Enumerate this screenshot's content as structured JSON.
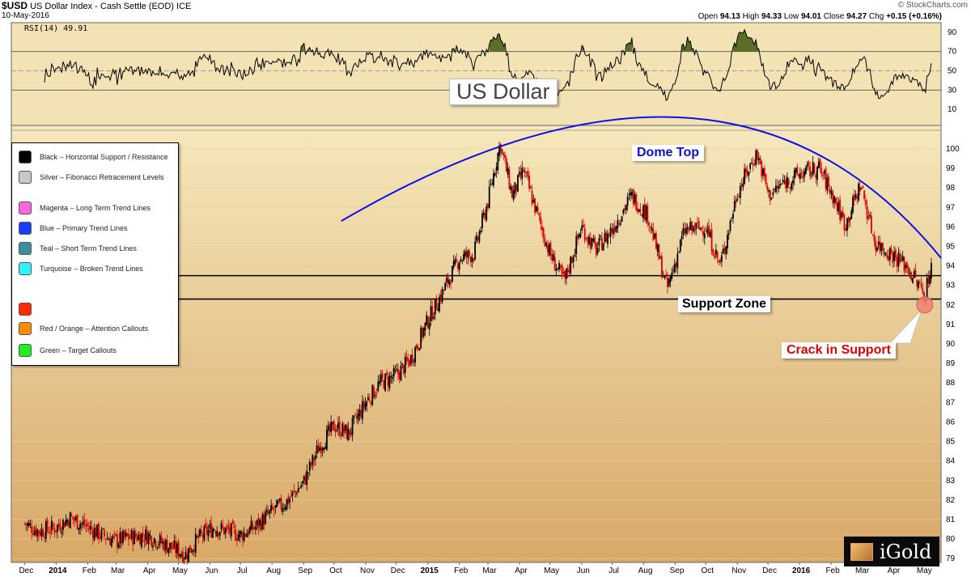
{
  "header": {
    "symbol": "$USD",
    "name": "US Dollar Index - Cash Settle (EOD)",
    "exchange": "ICE",
    "date": "10-May-2016",
    "source": "© StockCharts.com",
    "open_label": "Open",
    "open": "94.13",
    "high_label": "High",
    "high": "94.33",
    "low_label": "Low",
    "low": "94.01",
    "close_label": "Close",
    "close": "94.27",
    "chg_label": "Chg",
    "chg": "+0.15 (+0.16%)"
  },
  "rsi_panel": {
    "label": "RSI(14) 49.91",
    "ticks": [
      "90",
      "70",
      "50",
      "30",
      "10"
    ]
  },
  "legend": {
    "items": [
      {
        "label": "Black – Horizontal Support / Resistance",
        "color": "#000000"
      },
      {
        "label": "Silver – Fibonacci Retracement Levels",
        "color": "#c8c8c8"
      },
      {
        "label": "Magenta – Long Term Trend Lines",
        "color": "#ff66dd"
      },
      {
        "label": "Blue – Primary Trend Lines",
        "color": "#1a3cff"
      },
      {
        "label": "Teal – Short Term Trend Lines",
        "color": "#3a8f9e"
      },
      {
        "label": "Turquoise – Broken Trend Lines",
        "color": "#33f0ff"
      },
      {
        "label": "",
        "color": "#ff2a00"
      },
      {
        "label": "Red / Orange – Attention Callouts",
        "color": "#ff8c00"
      },
      {
        "label": "Green – Target Callouts",
        "color": "#22ee22"
      }
    ]
  },
  "callouts": {
    "title": "US Dollar",
    "dome": "Dome Top",
    "support": "Support Zone",
    "crack": "Crack in Support"
  },
  "logo": {
    "text": "iGold"
  },
  "colors": {
    "rsi_background": "#f3e3b4",
    "price_background_top": "#f6e8bc",
    "price_background_bottom": "#d8a868",
    "dome_line": "#1010e6",
    "up_candle": "#000000",
    "down_candle": "#dd0000",
    "crack_marker": "#f08070"
  },
  "chart_data": {
    "type": "line",
    "ohlc_style": "candlestick",
    "title": "$USD US Dollar Index - Cash Settle (EOD)",
    "xlabel": "",
    "ylabel": "",
    "x_tick_labels": [
      "Dec",
      "2014",
      "Feb",
      "Mar",
      "Apr",
      "May",
      "Jun",
      "Jul",
      "Aug",
      "Sep",
      "Oct",
      "Nov",
      "Dec",
      "2015",
      "Feb",
      "Mar",
      "Apr",
      "May",
      "Jun",
      "Jul",
      "Aug",
      "Sep",
      "Oct",
      "Nov",
      "Dec",
      "2016",
      "Feb",
      "Mar",
      "Apr",
      "May"
    ],
    "y_ticks": [
      79,
      80,
      81,
      82,
      83,
      84,
      85,
      86,
      87,
      88,
      89,
      90,
      91,
      92,
      93,
      94,
      95,
      96,
      97,
      98,
      99,
      100
    ],
    "ylim": [
      78.8,
      101.2
    ],
    "series": [
      {
        "x": [
          "2013-12-01",
          "2013-12-15",
          "2014-01-01",
          "2014-01-15",
          "2014-02-01",
          "2014-02-15",
          "2014-03-01",
          "2014-03-15",
          "2014-04-01",
          "2014-04-15",
          "2014-05-01",
          "2014-05-08",
          "2014-05-20",
          "2014-06-05",
          "2014-06-20",
          "2014-07-01",
          "2014-07-15",
          "2014-08-01",
          "2014-08-15",
          "2014-09-01",
          "2014-09-15",
          "2014-10-01",
          "2014-10-15",
          "2014-11-01",
          "2014-11-15",
          "2014-12-01",
          "2014-12-15",
          "2015-01-01",
          "2015-01-15",
          "2015-02-01",
          "2015-02-15",
          "2015-03-01",
          "2015-03-13",
          "2015-03-25",
          "2015-04-05",
          "2015-04-15",
          "2015-05-01",
          "2015-05-15",
          "2015-06-01",
          "2015-06-15",
          "2015-07-01",
          "2015-07-20",
          "2015-08-05",
          "2015-08-24",
          "2015-09-10",
          "2015-10-01",
          "2015-10-15",
          "2015-11-01",
          "2015-11-20",
          "2015-12-02",
          "2015-12-15",
          "2016-01-01",
          "2016-01-20",
          "2016-02-01",
          "2016-02-15",
          "2016-03-01",
          "2016-03-15",
          "2016-04-01",
          "2016-04-15",
          "2016-05-03",
          "2016-05-10"
        ],
        "close": [
          80.8,
          80.4,
          80.6,
          81.1,
          80.6,
          80.2,
          79.9,
          80.1,
          80.2,
          79.8,
          79.4,
          79.2,
          80.0,
          80.6,
          80.4,
          80.2,
          80.6,
          81.4,
          81.9,
          82.9,
          84.6,
          85.8,
          85.4,
          87.0,
          88.0,
          88.4,
          89.2,
          91.2,
          92.6,
          94.4,
          94.6,
          97.3,
          100.3,
          97.6,
          98.9,
          97.2,
          94.6,
          93.2,
          96.0,
          94.8,
          95.9,
          97.6,
          96.6,
          92.8,
          95.8,
          96.0,
          94.0,
          97.8,
          99.8,
          97.6,
          98.2,
          98.7,
          99.0,
          97.8,
          96.1,
          98.2,
          95.2,
          94.6,
          94.0,
          92.5,
          94.27
        ]
      }
    ],
    "support_zone": [
      92.3,
      93.5
    ],
    "dome_top_label": "Dome Top",
    "rsi": {
      "name": "RSI(14)",
      "last": 49.91,
      "ylim": [
        0,
        100
      ],
      "reference_lines": [
        30,
        50,
        70
      ]
    }
  }
}
